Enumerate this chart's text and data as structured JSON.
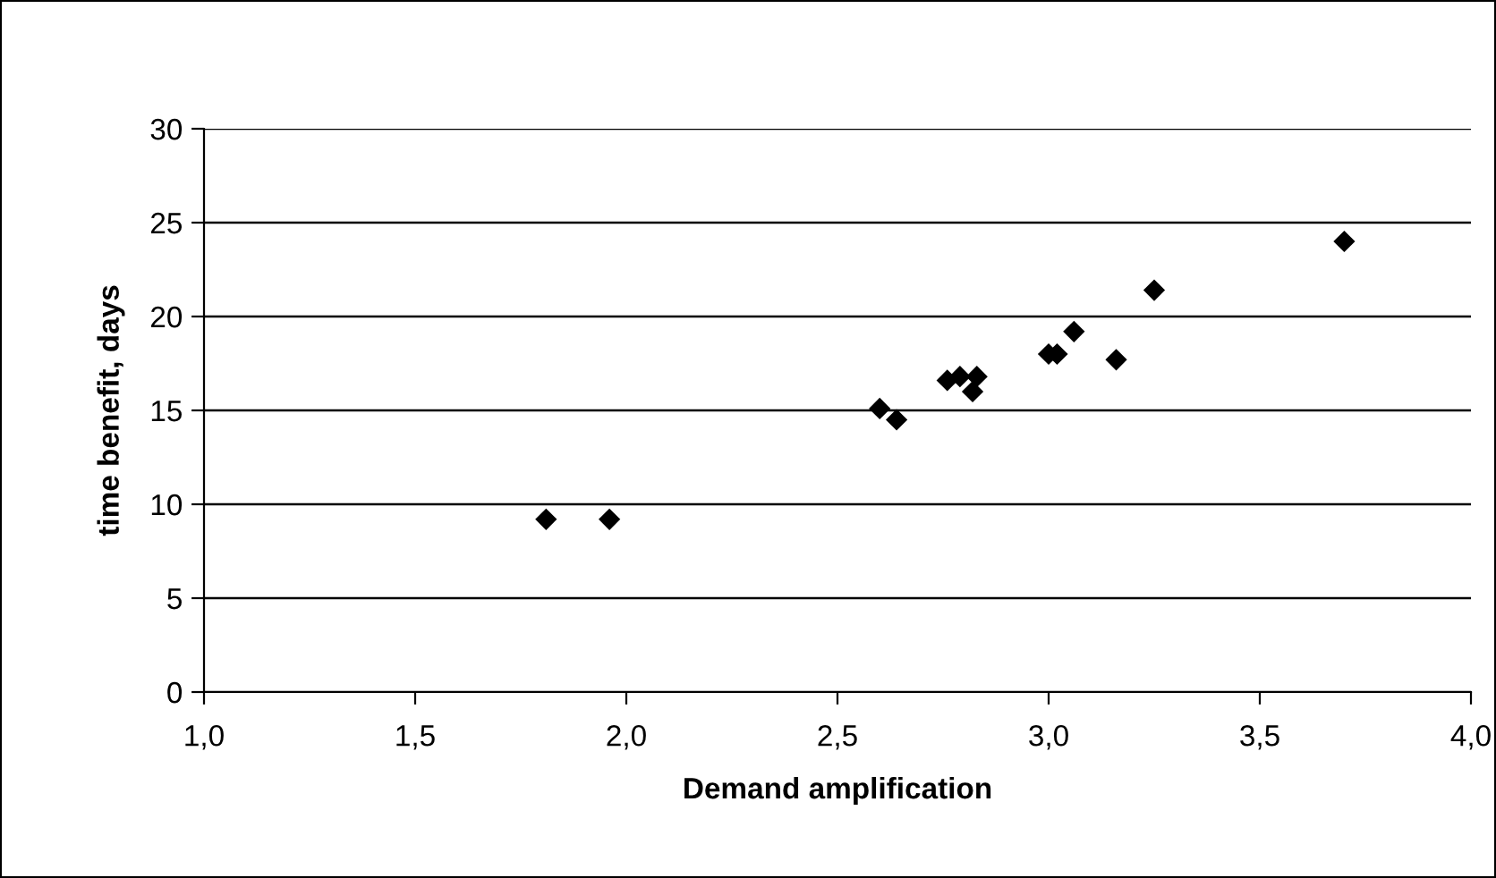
{
  "chart_data": {
    "type": "scatter",
    "xlabel": "Demand amplification",
    "ylabel": "time benefit, days",
    "x": [
      1.81,
      1.96,
      2.6,
      2.64,
      2.76,
      2.79,
      2.83,
      2.82,
      3.0,
      3.02,
      3.06,
      3.16,
      3.25,
      3.7
    ],
    "series": [
      {
        "color": "#000000",
        "values": [
          9.2,
          9.2,
          15.1,
          14.5,
          16.6,
          16.8,
          16.8,
          16.0,
          18.0,
          18.0,
          19.2,
          17.7,
          21.4,
          24.0
        ]
      }
    ],
    "xlim": [
      1.0,
      4.0
    ],
    "xticks": [
      {
        "value": 1.0,
        "label": "1,0"
      },
      {
        "value": 1.5,
        "label": "1,5"
      },
      {
        "value": 2.0,
        "label": "2,0"
      },
      {
        "value": 2.5,
        "label": "2,5"
      },
      {
        "value": 3.0,
        "label": "3,0"
      },
      {
        "value": 3.5,
        "label": "3,5"
      },
      {
        "value": 4.0,
        "label": "4,0"
      }
    ],
    "ylim": [
      0,
      30
    ],
    "yticks": [
      0,
      5,
      10,
      15,
      20,
      25,
      30
    ],
    "grid": "y",
    "marker": "diamond",
    "legend": false
  }
}
